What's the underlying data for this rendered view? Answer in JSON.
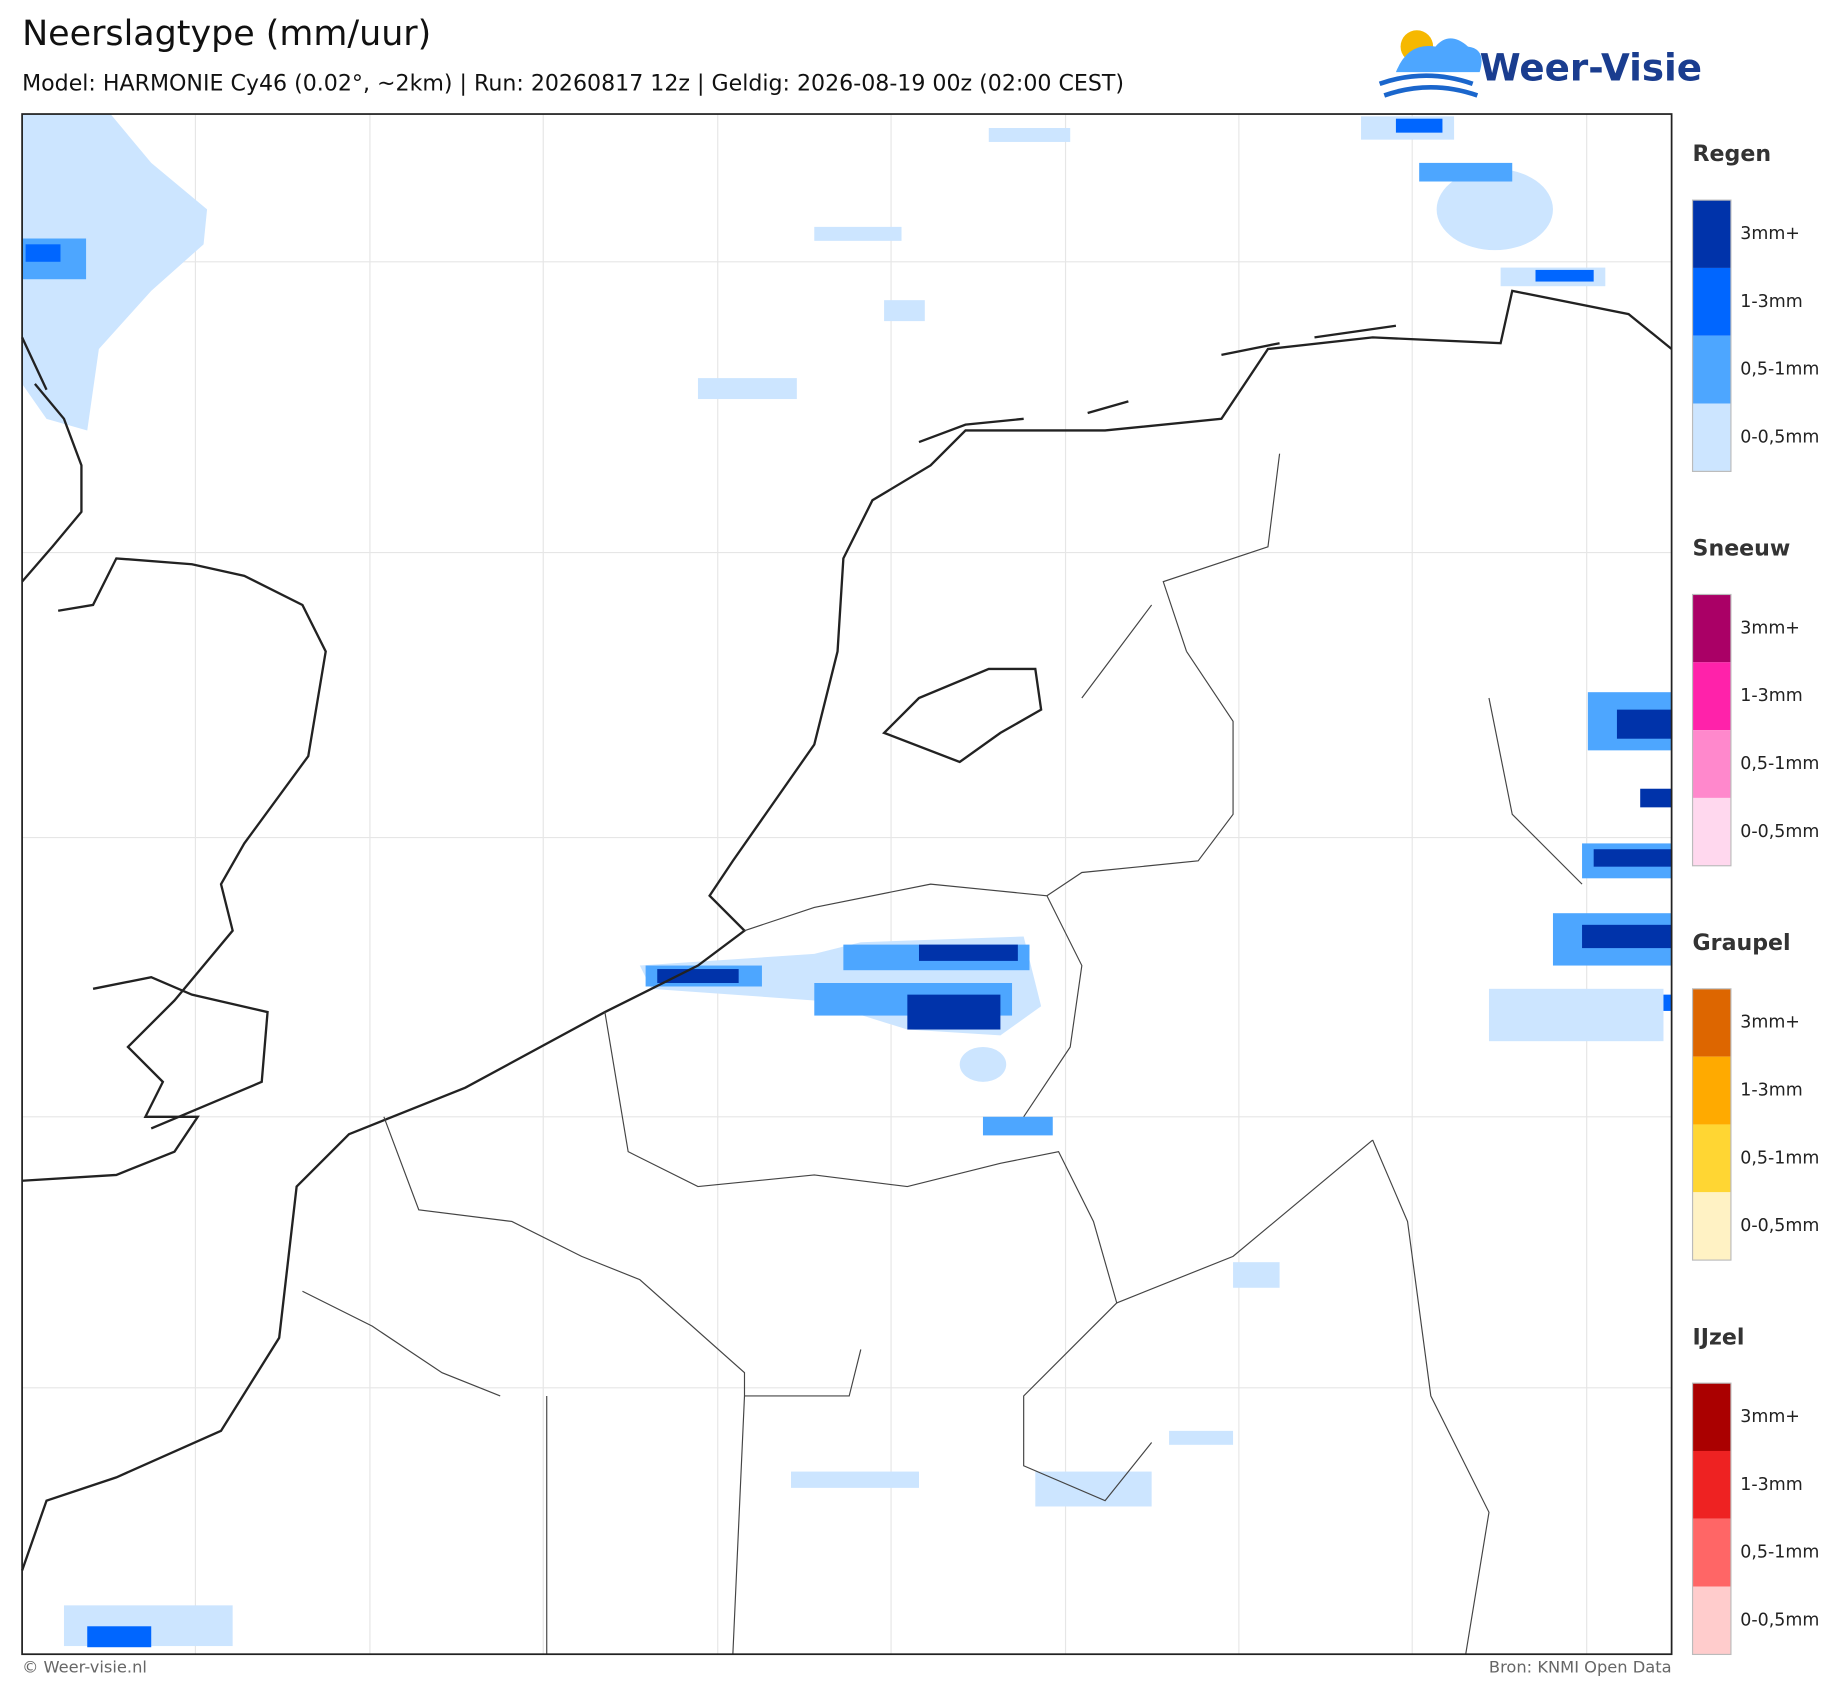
{
  "header": {
    "title": "Neerslagtype (mm/uur)",
    "subtitle": "Model: HARMONIE Cy46 (0.02°, ~2km)  |  Run: 20260817 12z  |  Geldig: 2026-08-19 00z (02:00 CEST)"
  },
  "logo": {
    "text": "Weer-Visie"
  },
  "legend": {
    "groups": [
      {
        "title": "Regen",
        "items": [
          {
            "label": "3mm+",
            "color": "#0033aa"
          },
          {
            "label": "1-3mm",
            "color": "#0066ff"
          },
          {
            "label": "0,5-1mm",
            "color": "#4da6ff"
          },
          {
            "label": "0-0,5mm",
            "color": "#cce5ff"
          }
        ]
      },
      {
        "title": "Sneeuw",
        "items": [
          {
            "label": "3mm+",
            "color": "#aa0066"
          },
          {
            "label": "1-3mm",
            "color": "#ff22aa"
          },
          {
            "label": "0,5-1mm",
            "color": "#ff88cc"
          },
          {
            "label": "0-0,5mm",
            "color": "#ffd8ee"
          }
        ]
      },
      {
        "title": "Graupel",
        "items": [
          {
            "label": "3mm+",
            "color": "#dd6600"
          },
          {
            "label": "1-3mm",
            "color": "#ffaa00"
          },
          {
            "label": "0,5-1mm",
            "color": "#ffd633"
          },
          {
            "label": "0-0,5mm",
            "color": "#fff2c4"
          }
        ]
      },
      {
        "title": "IJzel",
        "items": [
          {
            "label": "3mm+",
            "color": "#aa0000"
          },
          {
            "label": "1-3mm",
            "color": "#ee2222"
          },
          {
            "label": "0,5-1mm",
            "color": "#ff6666"
          },
          {
            "label": "0-0,5mm",
            "color": "#ffcccc"
          }
        ]
      }
    ]
  },
  "footer": {
    "left": "© Weer-visie.nl",
    "right": "Bron: KNMI Open Data"
  }
}
